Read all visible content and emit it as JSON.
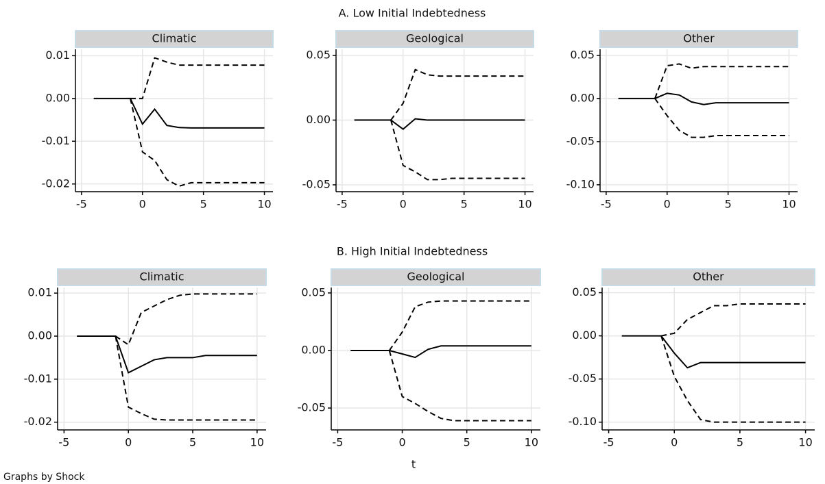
{
  "sections": [
    "A. Low Initial Indebtedness",
    "B. High Initial Indebtedness"
  ],
  "xlabel": "t",
  "note": "Graphs by Shock",
  "chart_data": [
    {
      "type": "line",
      "title": "Climatic",
      "grid": true,
      "x": [
        -4,
        -3,
        -2,
        -1,
        0,
        1,
        2,
        3,
        4,
        5,
        6,
        7,
        8,
        9,
        10
      ],
      "xlim": [
        -5.5,
        10.7
      ],
      "xticks": [
        -5,
        0,
        5,
        10
      ],
      "ylim": [
        -0.0218,
        0.0115
      ],
      "yticks": [
        -0.02,
        -0.01,
        {
          "value": 0,
          "label": "0.00"
        },
        0.01
      ],
      "series": [
        {
          "color": "#000000",
          "style": "solid",
          "values": [
            0,
            0,
            0,
            0,
            -0.006,
            -0.0025,
            -0.0063,
            -0.0068,
            -0.0069,
            -0.0069,
            -0.0069,
            -0.0069,
            -0.0069,
            -0.0069,
            -0.0069
          ]
        },
        {
          "color": "#000000",
          "style": "dashed",
          "values": [
            null,
            null,
            null,
            0,
            0,
            0.0095,
            0.0085,
            0.0078,
            0.0078,
            0.0078,
            0.0078,
            0.0078,
            0.0078,
            0.0078,
            0.0078
          ]
        },
        {
          "color": "#000000",
          "style": "dashed",
          "values": [
            null,
            null,
            null,
            0,
            -0.0125,
            -0.0145,
            -0.019,
            -0.0205,
            -0.0197,
            -0.0197,
            -0.0197,
            -0.0197,
            -0.0197,
            -0.0197,
            -0.0197
          ]
        }
      ]
    },
    {
      "type": "line",
      "title": "Geological",
      "grid": true,
      "x": [
        -4,
        -3,
        -2,
        -1,
        0,
        1,
        2,
        3,
        4,
        5,
        6,
        7,
        8,
        9,
        10
      ],
      "xlim": [
        -5.5,
        10.7
      ],
      "xticks": [
        -5,
        0,
        5,
        10
      ],
      "ylim": [
        -0.0553,
        0.0547
      ],
      "yticks": [
        -0.05,
        {
          "value": 0,
          "label": "0.00"
        },
        0.05
      ],
      "series": [
        {
          "color": "#000000",
          "style": "solid",
          "values": [
            0,
            0,
            0,
            0,
            -0.007,
            0.001,
            0,
            0,
            0,
            0,
            0,
            0,
            0,
            0,
            0
          ]
        },
        {
          "color": "#000000",
          "style": "dashed",
          "values": [
            null,
            null,
            null,
            0,
            0.013,
            0.039,
            0.035,
            0.034,
            0.034,
            0.034,
            0.034,
            0.034,
            0.034,
            0.034,
            0.034
          ]
        },
        {
          "color": "#000000",
          "style": "dashed",
          "values": [
            null,
            null,
            null,
            0,
            -0.035,
            -0.04,
            -0.046,
            -0.046,
            -0.045,
            -0.045,
            -0.045,
            -0.045,
            -0.045,
            -0.045,
            -0.045
          ]
        }
      ]
    },
    {
      "type": "line",
      "title": "Other",
      "grid": true,
      "x": [
        -4,
        -3,
        -2,
        -1,
        0,
        1,
        2,
        3,
        4,
        5,
        6,
        7,
        8,
        9,
        10
      ],
      "xlim": [
        -5.5,
        10.7
      ],
      "xticks": [
        -5,
        0,
        5,
        10
      ],
      "ylim": [
        -0.108,
        0.057
      ],
      "yticks": [
        {
          "value": -0.1,
          "label": "-0.10"
        },
        -0.05,
        {
          "value": 0,
          "label": "0.00"
        },
        0.05
      ],
      "series": [
        {
          "color": "#000000",
          "style": "solid",
          "values": [
            0,
            0,
            0,
            0,
            0.006,
            0.004,
            -0.004,
            -0.007,
            -0.005,
            -0.005,
            -0.005,
            -0.005,
            -0.005,
            -0.005,
            -0.005
          ]
        },
        {
          "color": "#000000",
          "style": "dashed",
          "values": [
            null,
            null,
            null,
            0,
            0.038,
            0.04,
            0.035,
            0.037,
            0.037,
            0.037,
            0.037,
            0.037,
            0.037,
            0.037,
            0.037
          ]
        },
        {
          "color": "#000000",
          "style": "dashed",
          "values": [
            null,
            null,
            null,
            0,
            -0.02,
            -0.037,
            -0.045,
            -0.045,
            -0.043,
            -0.043,
            -0.043,
            -0.043,
            -0.043,
            -0.043,
            -0.043
          ]
        }
      ]
    },
    {
      "type": "line",
      "title": "Climatic",
      "grid": true,
      "x": [
        -4,
        -3,
        -2,
        -1,
        0,
        1,
        2,
        3,
        4,
        5,
        6,
        7,
        8,
        9,
        10
      ],
      "xlim": [
        -5.5,
        10.7
      ],
      "xticks": [
        -5,
        0,
        5,
        10
      ],
      "ylim": [
        -0.0218,
        0.0113
      ],
      "yticks": [
        -0.02,
        -0.01,
        {
          "value": 0,
          "label": "0.00"
        },
        0.01
      ],
      "series": [
        {
          "color": "#000000",
          "style": "solid",
          "values": [
            0,
            0,
            0,
            0,
            -0.0085,
            -0.007,
            -0.0055,
            -0.005,
            -0.005,
            -0.005,
            -0.0045,
            -0.0045,
            -0.0045,
            -0.0045,
            -0.0045
          ]
        },
        {
          "color": "#000000",
          "style": "dashed",
          "values": [
            null,
            null,
            null,
            0,
            -0.002,
            0.0055,
            0.007,
            0.0085,
            0.0095,
            0.0098,
            0.0098,
            0.0098,
            0.0098,
            0.0098,
            0.0098
          ]
        },
        {
          "color": "#000000",
          "style": "dashed",
          "values": [
            null,
            null,
            null,
            0,
            -0.0165,
            -0.018,
            -0.0193,
            -0.0195,
            -0.0195,
            -0.0195,
            -0.0195,
            -0.0195,
            -0.0195,
            -0.0195,
            -0.0195
          ]
        }
      ]
    },
    {
      "type": "line",
      "title": "Geological",
      "grid": true,
      "x": [
        -4,
        -3,
        -2,
        -1,
        0,
        1,
        2,
        3,
        4,
        5,
        6,
        7,
        8,
        9,
        10
      ],
      "xlim": [
        -5.5,
        10.7
      ],
      "xticks": [
        -5,
        0,
        5,
        10
      ],
      "ylim": [
        -0.069,
        0.0547
      ],
      "yticks": [
        -0.05,
        {
          "value": 0,
          "label": "0.00"
        },
        0.05
      ],
      "series": [
        {
          "color": "#000000",
          "style": "solid",
          "values": [
            0,
            0,
            0,
            0,
            -0.003,
            -0.006,
            0.001,
            0.004,
            0.004,
            0.004,
            0.004,
            0.004,
            0.004,
            0.004,
            0.004
          ]
        },
        {
          "color": "#000000",
          "style": "dashed",
          "values": [
            null,
            null,
            null,
            0,
            0.016,
            0.038,
            0.042,
            0.043,
            0.043,
            0.043,
            0.043,
            0.043,
            0.043,
            0.043,
            0.043
          ]
        },
        {
          "color": "#000000",
          "style": "dashed",
          "values": [
            null,
            null,
            null,
            0,
            -0.04,
            -0.046,
            -0.053,
            -0.059,
            -0.061,
            -0.061,
            -0.061,
            -0.061,
            -0.061,
            -0.061,
            -0.061
          ]
        }
      ]
    },
    {
      "type": "line",
      "title": "Other",
      "grid": true,
      "x": [
        -4,
        -3,
        -2,
        -1,
        0,
        1,
        2,
        3,
        4,
        5,
        6,
        7,
        8,
        9,
        10
      ],
      "xlim": [
        -5.5,
        10.7
      ],
      "xticks": [
        -5,
        0,
        5,
        10
      ],
      "ylim": [
        -0.109,
        0.056
      ],
      "yticks": [
        {
          "value": -0.1,
          "label": "-0.10"
        },
        -0.05,
        {
          "value": 0,
          "label": "0.00"
        },
        0.05
      ],
      "series": [
        {
          "color": "#000000",
          "style": "solid",
          "values": [
            0,
            0,
            0,
            0,
            -0.02,
            -0.037,
            -0.031,
            -0.031,
            -0.031,
            -0.031,
            -0.031,
            -0.031,
            -0.031,
            -0.031,
            -0.031
          ]
        },
        {
          "color": "#000000",
          "style": "dashed",
          "values": [
            null,
            null,
            null,
            0,
            0.003,
            0.019,
            0.027,
            0.035,
            0.035,
            0.037,
            0.037,
            0.037,
            0.037,
            0.037,
            0.037
          ]
        },
        {
          "color": "#000000",
          "style": "dashed",
          "values": [
            null,
            null,
            null,
            0,
            -0.047,
            -0.075,
            -0.097,
            -0.1,
            -0.1,
            -0.1,
            -0.1,
            -0.1,
            -0.1,
            -0.1,
            -0.1
          ]
        }
      ]
    }
  ]
}
